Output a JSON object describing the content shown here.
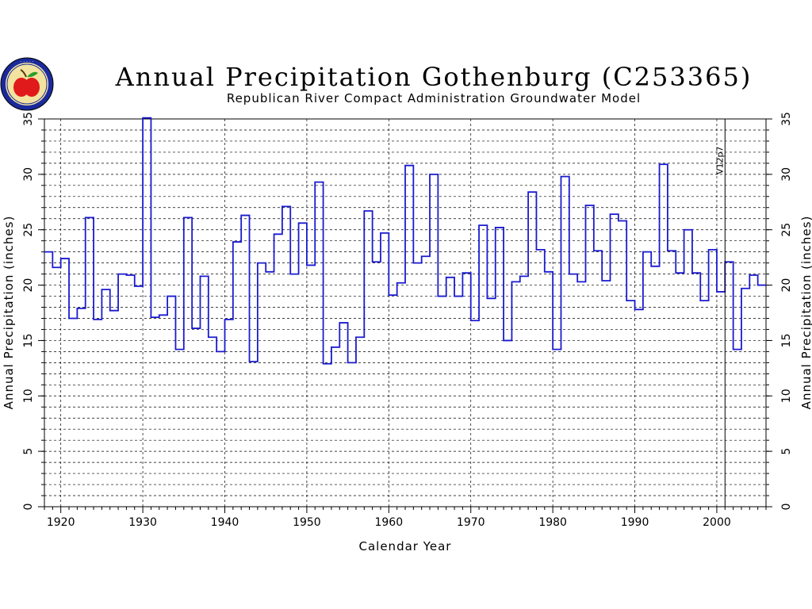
{
  "chart_data": {
    "type": "line",
    "style": "step",
    "title": "Annual Precipitation Gothenburg (C253365)",
    "subtitle": "Republican River Compact Administration Groundwater Model",
    "xlabel": "Calendar Year",
    "ylabel": "Annual Precipitation (inches)",
    "xlim": [
      1918,
      2006
    ],
    "ylim": [
      0,
      35
    ],
    "x_ticks": [
      "1920",
      "1930",
      "1940",
      "1950",
      "1960",
      "1970",
      "1980",
      "1990",
      "2000"
    ],
    "y_ticks": [
      "0",
      "5",
      "10",
      "15",
      "20",
      "25",
      "30",
      "35"
    ],
    "grid": "dashed",
    "annotation": {
      "text": "V12p7",
      "x": 2001
    },
    "series_color": "#1a1ad0",
    "series": [
      {
        "x": [
          1918,
          1919,
          1920,
          1921,
          1922,
          1923,
          1924,
          1925,
          1926,
          1927,
          1928,
          1929,
          1930,
          1931,
          1932,
          1933,
          1934,
          1935,
          1936,
          1937,
          1938,
          1939,
          1940,
          1941,
          1942,
          1943,
          1944,
          1945,
          1946,
          1947,
          1948,
          1949,
          1950,
          1951,
          1952,
          1953,
          1954,
          1955,
          1956,
          1957,
          1958,
          1959,
          1960,
          1961,
          1962,
          1963,
          1964,
          1965,
          1966,
          1967,
          1968,
          1969,
          1970,
          1971,
          1972,
          1973,
          1974,
          1975,
          1976,
          1977,
          1978,
          1979,
          1980,
          1981,
          1982,
          1983,
          1984,
          1985,
          1986,
          1987,
          1988,
          1989,
          1990,
          1991,
          1992,
          1993,
          1994,
          1995,
          1996,
          1997,
          1998,
          1999,
          2000,
          2001,
          2002,
          2003,
          2004,
          2005
        ],
        "values": [
          23.0,
          21.6,
          22.4,
          17.0,
          17.9,
          26.1,
          16.9,
          19.6,
          17.7,
          21.0,
          20.9,
          19.9,
          35.1,
          17.1,
          17.3,
          19.0,
          14.2,
          26.1,
          16.1,
          20.8,
          15.3,
          14.0,
          16.9,
          23.9,
          26.3,
          13.1,
          22.0,
          21.2,
          24.6,
          27.1,
          21.0,
          25.6,
          21.8,
          29.3,
          12.9,
          14.4,
          16.6,
          13.0,
          15.3,
          26.7,
          22.1,
          24.7,
          19.1,
          20.2,
          30.8,
          22.0,
          22.6,
          30.0,
          19.0,
          20.7,
          19.0,
          21.1,
          16.8,
          25.4,
          18.8,
          25.2,
          15.0,
          20.3,
          20.8,
          28.4,
          23.2,
          21.2,
          14.2,
          29.8,
          21.0,
          20.3,
          27.2,
          23.1,
          20.4,
          26.4,
          25.8,
          18.6,
          17.8,
          23.0,
          21.7,
          30.9,
          23.1,
          21.1,
          25.0,
          21.1,
          18.6,
          23.2,
          19.4,
          22.1,
          14.2,
          19.7,
          20.9,
          20.0
        ]
      }
    ]
  }
}
